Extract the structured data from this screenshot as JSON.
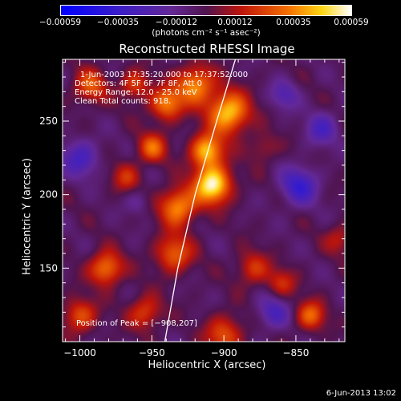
{
  "chart_data": {
    "type": "heatmap",
    "title": "Reconstructed RHESSI Image",
    "xlabel": "Heliocentric X (arcsec)",
    "ylabel": "Heliocentric Y (arcsec)",
    "xlim": [
      -1012,
      -816
    ],
    "ylim": [
      100,
      292
    ],
    "xticks": [
      -1000,
      -950,
      -900,
      -850
    ],
    "xtick_labels": [
      "−1000",
      "−950",
      "−900",
      "−850"
    ],
    "yticks": [
      150,
      200,
      250
    ],
    "ytick_labels": [
      "150",
      "200",
      "250"
    ],
    "colorbar": {
      "range": [
        -0.00059,
        0.00059
      ],
      "ticks": [
        -0.00059,
        -0.00035,
        -0.00012,
        0.00012,
        0.00035,
        0.00059
      ],
      "tick_labels": [
        "−0.00059",
        "−0.00035",
        "−0.00012",
        "0.00012",
        "0.00035",
        "0.00059"
      ],
      "unit_label": "(photons cm⁻² s⁻¹ asec⁻²)"
    },
    "annotations": [
      "1-Jun-2003 17:35:20.000 to 17:37:52.000",
      "Detectors: 4F 5F 6F 7F 8F, Att 0",
      "Energy Range: 12.0 - 25.0 keV",
      "Clean     Total counts: 918."
    ],
    "peak_label": "Position of Peak = [−908,207]",
    "peak": [
      -908,
      207
    ],
    "limb_curve": [
      [
        -941,
        100
      ],
      [
        -932,
        150
      ],
      [
        -920,
        200
      ],
      [
        -905,
        250
      ],
      [
        -892,
        292
      ]
    ],
    "blobs": [
      {
        "x": -908,
        "y": 207,
        "s": 9,
        "v": 1.0
      },
      {
        "x": -912,
        "y": 230,
        "s": 8,
        "v": 0.8
      },
      {
        "x": -897,
        "y": 256,
        "s": 10,
        "v": 0.85
      },
      {
        "x": -920,
        "y": 275,
        "s": 9,
        "v": 0.7
      },
      {
        "x": -940,
        "y": 262,
        "s": 8,
        "v": 0.65
      },
      {
        "x": -932,
        "y": 192,
        "s": 9,
        "v": 0.7
      },
      {
        "x": -950,
        "y": 232,
        "s": 7,
        "v": 0.55
      },
      {
        "x": -935,
        "y": 160,
        "s": 9,
        "v": 0.55
      },
      {
        "x": -982,
        "y": 150,
        "s": 8,
        "v": 0.65
      },
      {
        "x": -1000,
        "y": 118,
        "s": 8,
        "v": 0.5
      },
      {
        "x": -993,
        "y": 274,
        "s": 8,
        "v": 0.5
      },
      {
        "x": -962,
        "y": 275,
        "s": 7,
        "v": 0.45
      },
      {
        "x": -968,
        "y": 212,
        "s": 7,
        "v": 0.35
      },
      {
        "x": -880,
        "y": 150,
        "s": 8,
        "v": 0.4
      },
      {
        "x": -860,
        "y": 140,
        "s": 7,
        "v": 0.35
      },
      {
        "x": -840,
        "y": 118,
        "s": 7,
        "v": 0.55
      },
      {
        "x": -900,
        "y": 105,
        "s": 9,
        "v": 0.5
      },
      {
        "x": -955,
        "y": 120,
        "s": 8,
        "v": 0.45
      },
      {
        "x": -873,
        "y": 232,
        "s": 7,
        "v": 0.25
      },
      {
        "x": -820,
        "y": 170,
        "s": 7,
        "v": 0.3
      },
      {
        "x": -848,
        "y": 206,
        "s": 9,
        "v": -0.55
      },
      {
        "x": -832,
        "y": 245,
        "s": 8,
        "v": -0.4
      },
      {
        "x": -1000,
        "y": 225,
        "s": 9,
        "v": -0.45
      },
      {
        "x": -866,
        "y": 120,
        "s": 8,
        "v": -0.4
      },
      {
        "x": -960,
        "y": 195,
        "s": 6,
        "v": -0.2
      },
      {
        "x": -858,
        "y": 268,
        "s": 7,
        "v": -0.35
      }
    ]
  },
  "footer": {
    "date": "6-Jun-2013 13:02"
  }
}
